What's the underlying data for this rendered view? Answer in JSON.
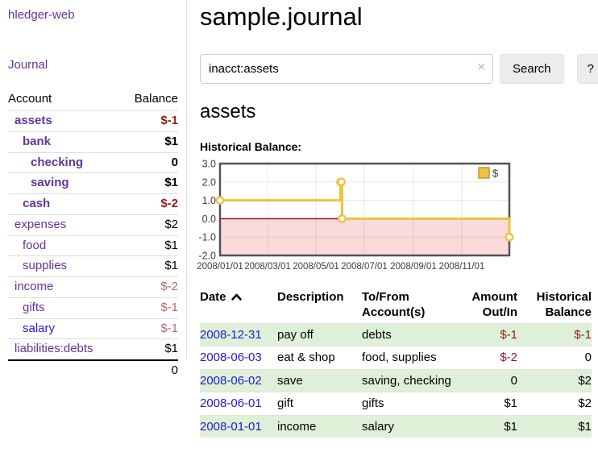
{
  "app": {
    "brand": "hledger-web",
    "journal_link": "Journal"
  },
  "colors": {
    "accent_purple": "#663399",
    "link_blue": "#2119d6",
    "negative_strong": "#8f1d1d",
    "negative_muted": "#b36a6a",
    "row_green": "#dff0d8",
    "chart_line": "#edc240",
    "chart_marker_fill": "#ffffff",
    "chart_swatch_border": "#c09a2a",
    "chart_negative_fill": "#fbdada",
    "chart_zero_line": "#8b0000",
    "chart_border": "#545454",
    "chart_grid": "rgba(0,0,0,0.09)"
  },
  "sidebar": {
    "columns": [
      "Account",
      "Balance"
    ],
    "accounts": [
      {
        "name": "assets",
        "level": 1,
        "balance": "$-1",
        "bold": true,
        "negative": true
      },
      {
        "name": "bank",
        "level": 2,
        "balance": "$1",
        "bold": true,
        "negative": false
      },
      {
        "name": "checking",
        "level": 3,
        "balance": "0",
        "bold": true,
        "negative": false
      },
      {
        "name": "saving",
        "level": 3,
        "balance": "$1",
        "bold": true,
        "negative": false
      },
      {
        "name": "cash",
        "level": 2,
        "balance": "$-2",
        "bold": true,
        "negative": true
      },
      {
        "name": "expenses",
        "level": 1,
        "balance": "$2",
        "bold": false,
        "negative": false
      },
      {
        "name": "food",
        "level": 2,
        "balance": "$1",
        "bold": false,
        "negative": false
      },
      {
        "name": "supplies",
        "level": 2,
        "balance": "$1",
        "bold": false,
        "negative": false
      },
      {
        "name": "income",
        "level": 1,
        "balance": "$-2",
        "bold": false,
        "negative": true
      },
      {
        "name": "gifts",
        "level": 2,
        "balance": "$-1",
        "bold": false,
        "negative": true
      },
      {
        "name": "salary",
        "level": 2,
        "balance": "$-1",
        "bold": false,
        "negative": true,
        "unvisited": true
      },
      {
        "name": "liabilities:debts",
        "level": 1,
        "balance": "$1",
        "bold": false,
        "negative": false
      }
    ],
    "total": "0"
  },
  "header": {
    "title": "sample.journal"
  },
  "search": {
    "value": "inacct:assets",
    "clear_icon": "×",
    "button_label": "Search",
    "help_label": "?"
  },
  "account_page": {
    "heading": "assets",
    "chart_label": "Historical Balance:"
  },
  "chart_data": {
    "type": "step-line",
    "title": "Historical Balance:",
    "series": [
      {
        "name": "$",
        "color": "#edc240",
        "points": [
          [
            "2008-01-01",
            1
          ],
          [
            "2008-06-01",
            2
          ],
          [
            "2008-06-02",
            2
          ],
          [
            "2008-06-03",
            0
          ],
          [
            "2008-12-31",
            -1
          ]
        ]
      }
    ],
    "x_ticks": [
      "2008/01/01",
      "2008/03/01",
      "2008/05/01",
      "2008/07/01",
      "2008/09/01",
      "2008/11/01"
    ],
    "y_tick_labels": [
      "3.0",
      "2.0",
      "1.0",
      "0.0",
      "-1.0",
      "-2.0"
    ],
    "y_ticks": [
      3,
      2,
      1,
      0,
      -1,
      -2
    ],
    "ylim": [
      -2,
      3
    ],
    "x_range": [
      "2008-01-01",
      "2008-12-31"
    ],
    "grid": true,
    "legend_position": "top-right",
    "negative_region_shaded": true
  },
  "register": {
    "headers": [
      {
        "label": "Date",
        "sort": "asc"
      },
      {
        "label": "Description"
      },
      {
        "label": "To/From Account(s)"
      },
      {
        "label": "Amount Out/In",
        "align": "right"
      },
      {
        "label": "Historical Balance",
        "align": "right"
      }
    ],
    "rows": [
      {
        "date": "2008-12-31",
        "description": "pay off",
        "accounts": "debts",
        "amount": "$-1",
        "balance": "$-1"
      },
      {
        "date": "2008-06-03",
        "description": "eat & shop",
        "accounts": "food, supplies",
        "amount": "$-2",
        "balance": "0"
      },
      {
        "date": "2008-06-02",
        "description": "save",
        "accounts": "saving, checking",
        "amount": "0",
        "balance": "$2"
      },
      {
        "date": "2008-06-01",
        "description": "gift",
        "accounts": "gifts",
        "amount": "$1",
        "balance": "$2"
      },
      {
        "date": "2008-01-01",
        "description": "income",
        "accounts": "salary",
        "amount": "$1",
        "balance": "$1"
      }
    ]
  }
}
